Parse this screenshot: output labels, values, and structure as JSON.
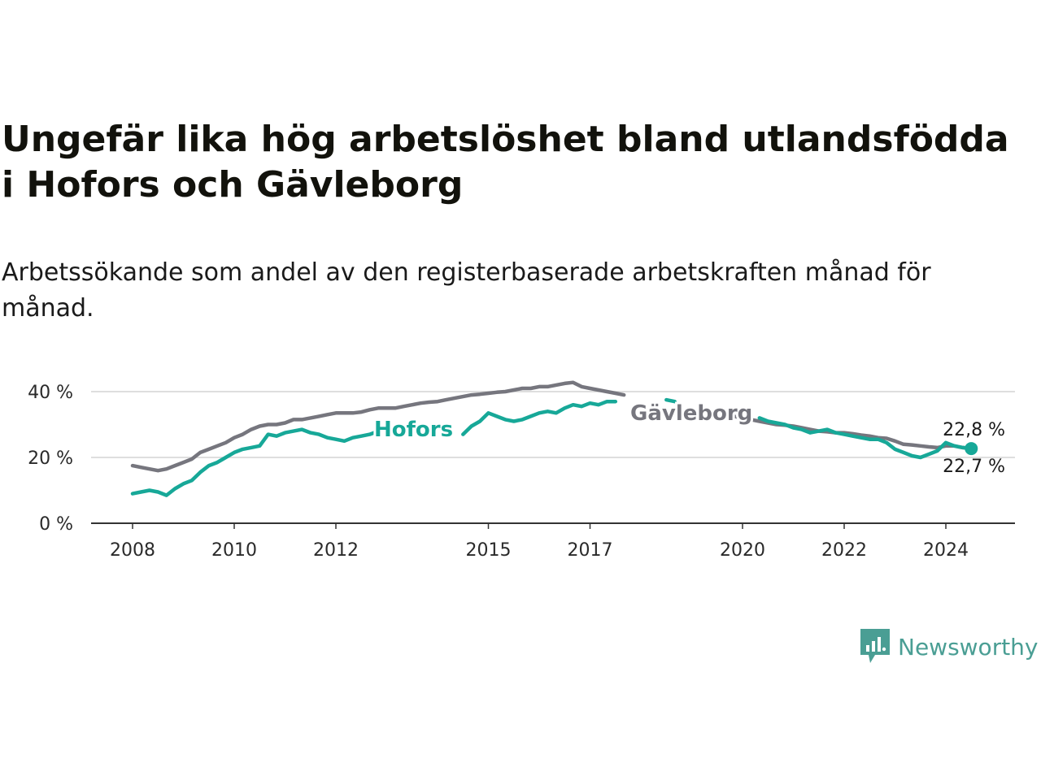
{
  "title": "Ungefär lika hög arbetslöshet bland utlandsfödda i Hofors och Gävleborg",
  "subtitle": "Arbetssökande som andel av den registerbaserade arbetskraften månad för månad.",
  "brand": {
    "name": "Newsworthy",
    "icon": "newsworthy-logo-icon",
    "color": "#4a9e94"
  },
  "chart_data": {
    "type": "line",
    "title": "Ungefär lika hög arbetslöshet bland utlandsfödda i Hofors och Gävleborg",
    "xlabel": "",
    "ylabel": "",
    "xlim": [
      "2008-01",
      "2024-12"
    ],
    "ylim": [
      0,
      40
    ],
    "grid": true,
    "y_ticks": [
      {
        "value": 0,
        "label": "0 %"
      },
      {
        "value": 20,
        "label": "20 %"
      },
      {
        "value": 40,
        "label": "40 %"
      }
    ],
    "x_ticks": [
      {
        "value": "2008-01",
        "label": "2008"
      },
      {
        "value": "2010-01",
        "label": "2010"
      },
      {
        "value": "2012-01",
        "label": "2012"
      },
      {
        "value": "2015-01",
        "label": "2015"
      },
      {
        "value": "2017-01",
        "label": "2017"
      },
      {
        "value": "2020-01",
        "label": "2020"
      },
      {
        "value": "2022-01",
        "label": "2022"
      },
      {
        "value": "2024-01",
        "label": "2024"
      }
    ],
    "series": [
      {
        "name": "Gävleborg",
        "color": "#76767e",
        "end_label": "22,8 %",
        "points": [
          [
            "2008-01",
            17.5
          ],
          [
            "2008-03",
            17.0
          ],
          [
            "2008-05",
            16.5
          ],
          [
            "2008-07",
            16.0
          ],
          [
            "2008-09",
            16.5
          ],
          [
            "2008-11",
            17.5
          ],
          [
            "2009-01",
            18.5
          ],
          [
            "2009-03",
            19.5
          ],
          [
            "2009-05",
            21.5
          ],
          [
            "2009-07",
            22.5
          ],
          [
            "2009-09",
            23.5
          ],
          [
            "2009-11",
            24.5
          ],
          [
            "2010-01",
            26.0
          ],
          [
            "2010-03",
            27.0
          ],
          [
            "2010-05",
            28.5
          ],
          [
            "2010-07",
            29.5
          ],
          [
            "2010-09",
            30.0
          ],
          [
            "2010-11",
            30.0
          ],
          [
            "2011-01",
            30.5
          ],
          [
            "2011-03",
            31.5
          ],
          [
            "2011-05",
            31.5
          ],
          [
            "2011-07",
            32.0
          ],
          [
            "2011-09",
            32.5
          ],
          [
            "2011-11",
            33.0
          ],
          [
            "2012-01",
            33.5
          ],
          [
            "2012-03",
            33.5
          ],
          [
            "2012-05",
            33.5
          ],
          [
            "2012-07",
            33.8
          ],
          [
            "2012-09",
            34.5
          ],
          [
            "2012-11",
            35.0
          ],
          [
            "2013-01",
            35.0
          ],
          [
            "2013-03",
            35.0
          ],
          [
            "2013-05",
            35.5
          ],
          [
            "2013-07",
            36.0
          ],
          [
            "2013-09",
            36.5
          ],
          [
            "2013-11",
            36.8
          ],
          [
            "2014-01",
            37.0
          ],
          [
            "2014-03",
            37.5
          ],
          [
            "2014-05",
            38.0
          ],
          [
            "2014-07",
            38.5
          ],
          [
            "2014-09",
            39.0
          ],
          [
            "2014-11",
            39.2
          ],
          [
            "2015-01",
            39.5
          ],
          [
            "2015-03",
            39.8
          ],
          [
            "2015-05",
            40.0
          ],
          [
            "2015-07",
            40.5
          ],
          [
            "2015-09",
            41.0
          ],
          [
            "2015-11",
            41.0
          ],
          [
            "2016-01",
            41.5
          ],
          [
            "2016-03",
            41.5
          ],
          [
            "2016-05",
            42.0
          ],
          [
            "2016-07",
            42.5
          ],
          [
            "2016-09",
            42.8
          ],
          [
            "2016-11",
            41.5
          ],
          [
            "2017-01",
            41.0
          ],
          [
            "2017-03",
            40.5
          ],
          [
            "2017-05",
            40.0
          ],
          [
            "2017-07",
            39.5
          ],
          [
            "2017-09",
            39.0
          ],
          [
            "2019-11",
            32.5
          ],
          [
            "2020-01",
            32.0
          ],
          [
            "2020-03",
            31.5
          ],
          [
            "2020-05",
            31.0
          ],
          [
            "2020-07",
            30.5
          ],
          [
            "2020-09",
            30.0
          ],
          [
            "2020-11",
            29.8
          ],
          [
            "2021-01",
            29.5
          ],
          [
            "2021-03",
            29.0
          ],
          [
            "2021-05",
            28.5
          ],
          [
            "2021-07",
            28.0
          ],
          [
            "2021-09",
            27.8
          ],
          [
            "2021-11",
            27.5
          ],
          [
            "2022-01",
            27.5
          ],
          [
            "2022-03",
            27.2
          ],
          [
            "2022-05",
            26.8
          ],
          [
            "2022-07",
            26.5
          ],
          [
            "2022-09",
            26.0
          ],
          [
            "2022-11",
            25.8
          ],
          [
            "2023-01",
            25.0
          ],
          [
            "2023-03",
            24.0
          ],
          [
            "2023-05",
            23.8
          ],
          [
            "2023-07",
            23.5
          ],
          [
            "2023-09",
            23.2
          ],
          [
            "2023-11",
            23.0
          ],
          [
            "2024-01",
            23.5
          ],
          [
            "2024-03",
            23.5
          ],
          [
            "2024-05",
            23.0
          ],
          [
            "2024-07",
            22.8
          ]
        ]
      },
      {
        "name": "Hofors",
        "color": "#17a898",
        "end_label": "22,7 %",
        "points": [
          [
            "2008-01",
            9.0
          ],
          [
            "2008-03",
            9.5
          ],
          [
            "2008-05",
            10.0
          ],
          [
            "2008-07",
            9.5
          ],
          [
            "2008-09",
            8.5
          ],
          [
            "2008-11",
            10.5
          ],
          [
            "2009-01",
            12.0
          ],
          [
            "2009-03",
            13.0
          ],
          [
            "2009-05",
            15.5
          ],
          [
            "2009-07",
            17.5
          ],
          [
            "2009-09",
            18.5
          ],
          [
            "2009-11",
            20.0
          ],
          [
            "2010-01",
            21.5
          ],
          [
            "2010-03",
            22.5
          ],
          [
            "2010-05",
            23.0
          ],
          [
            "2010-07",
            23.5
          ],
          [
            "2010-09",
            27.0
          ],
          [
            "2010-11",
            26.5
          ],
          [
            "2011-01",
            27.5
          ],
          [
            "2011-03",
            28.0
          ],
          [
            "2011-05",
            28.5
          ],
          [
            "2011-07",
            27.5
          ],
          [
            "2011-09",
            27.0
          ],
          [
            "2011-11",
            26.0
          ],
          [
            "2012-01",
            25.5
          ],
          [
            "2012-03",
            25.0
          ],
          [
            "2012-05",
            26.0
          ],
          [
            "2012-07",
            26.5
          ],
          [
            "2012-09",
            27.0
          ],
          [
            "2012-11",
            28.0
          ],
          [
            "2014-07",
            27.0
          ],
          [
            "2014-09",
            29.5
          ],
          [
            "2014-11",
            31.0
          ],
          [
            "2015-01",
            33.5
          ],
          [
            "2015-03",
            32.5
          ],
          [
            "2015-05",
            31.5
          ],
          [
            "2015-07",
            31.0
          ],
          [
            "2015-09",
            31.5
          ],
          [
            "2015-11",
            32.5
          ],
          [
            "2016-01",
            33.5
          ],
          [
            "2016-03",
            34.0
          ],
          [
            "2016-05",
            33.5
          ],
          [
            "2016-07",
            35.0
          ],
          [
            "2016-09",
            36.0
          ],
          [
            "2016-11",
            35.5
          ],
          [
            "2017-01",
            36.5
          ],
          [
            "2017-03",
            36.0
          ],
          [
            "2017-05",
            37.0
          ],
          [
            "2017-07",
            37.0
          ],
          [
            "2018-07",
            37.5
          ],
          [
            "2018-09",
            37.0
          ],
          [
            "2020-05",
            32.0
          ],
          [
            "2020-07",
            31.0
          ],
          [
            "2020-09",
            30.5
          ],
          [
            "2020-11",
            30.0
          ],
          [
            "2021-01",
            29.0
          ],
          [
            "2021-03",
            28.5
          ],
          [
            "2021-05",
            27.5
          ],
          [
            "2021-07",
            28.0
          ],
          [
            "2021-09",
            28.5
          ],
          [
            "2021-11",
            27.5
          ],
          [
            "2022-01",
            27.0
          ],
          [
            "2022-03",
            26.5
          ],
          [
            "2022-05",
            26.0
          ],
          [
            "2022-07",
            25.5
          ],
          [
            "2022-09",
            25.5
          ],
          [
            "2022-11",
            24.5
          ],
          [
            "2023-01",
            22.5
          ],
          [
            "2023-03",
            21.5
          ],
          [
            "2023-05",
            20.5
          ],
          [
            "2023-07",
            20.0
          ],
          [
            "2023-09",
            21.0
          ],
          [
            "2023-11",
            22.0
          ],
          [
            "2024-01",
            24.5
          ],
          [
            "2024-03",
            23.5
          ],
          [
            "2024-05",
            23.0
          ],
          [
            "2024-07",
            22.7
          ]
        ]
      }
    ]
  }
}
